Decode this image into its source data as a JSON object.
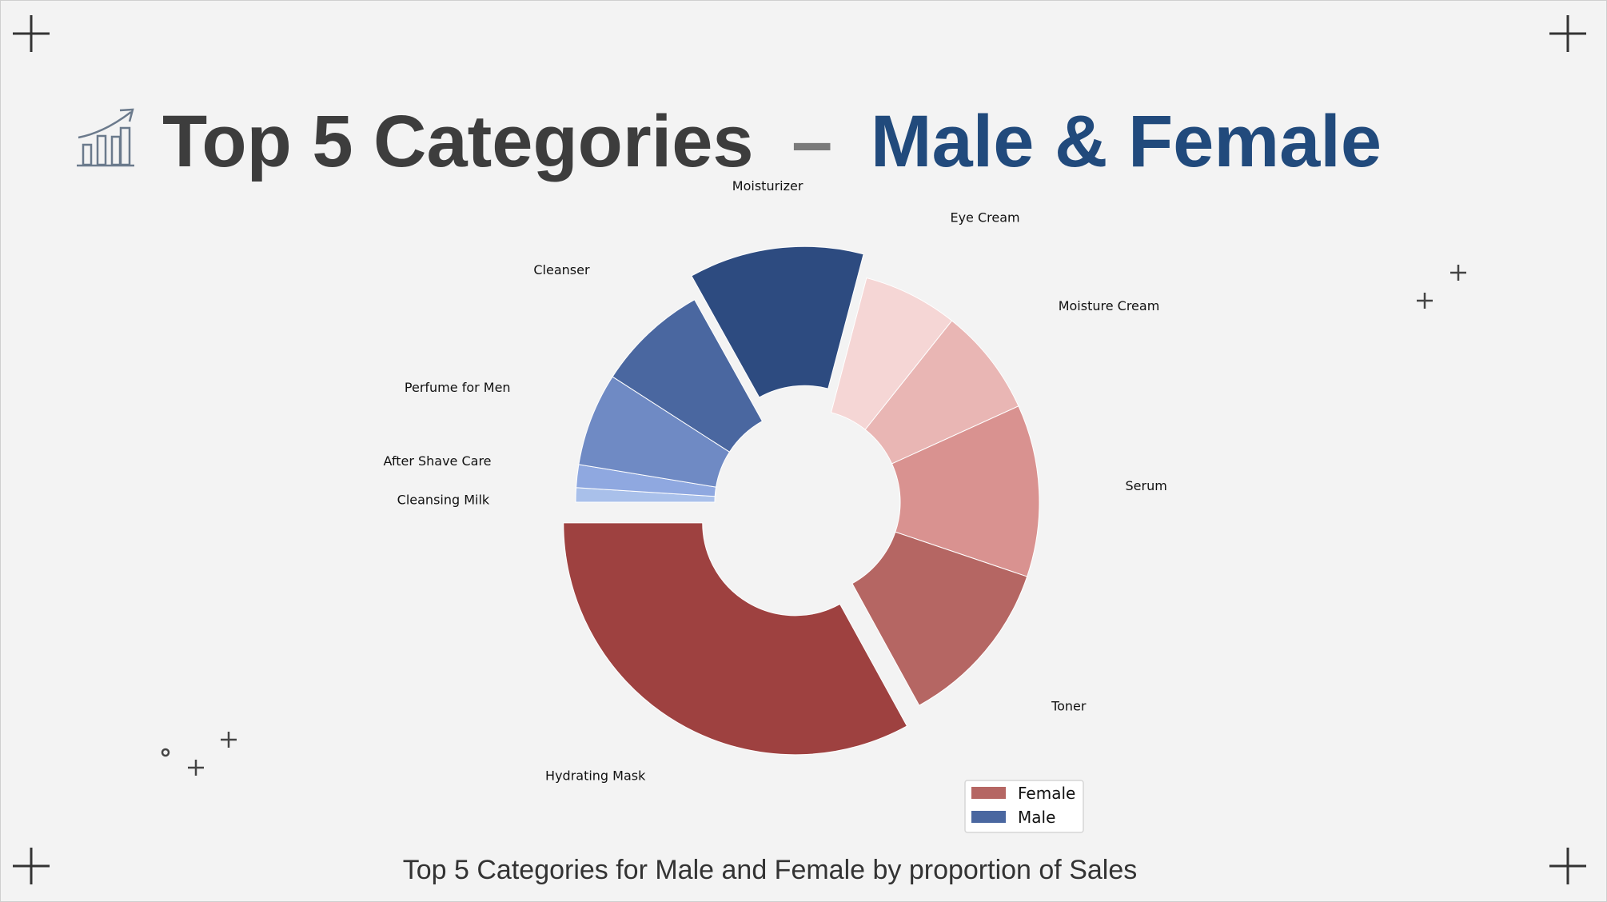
{
  "title": {
    "part1": "Top 5 Categories",
    "dash": "–",
    "part2": "Male & Female"
  },
  "caption": "Top 5 Categories for Male and Female by proportion of Sales",
  "icons": [
    "growth-chart-icon",
    "crosshair-mark-icon",
    "plus-sparkle-icon",
    "circle-dot-icon"
  ],
  "colors": {
    "title_dark": "#3d3d3d",
    "title_accent": "#214a7c",
    "dash": "#7a7a7a",
    "background": "#f3f3f3"
  },
  "legend": {
    "placement": "lower-right",
    "items": [
      {
        "label": "Female",
        "color": "#b56663"
      },
      {
        "label": "Male",
        "color": "#4a67a0"
      }
    ]
  },
  "chart_data": {
    "type": "pie",
    "donut": true,
    "start_angle_deg": 180,
    "direction": "clockwise",
    "slices": [
      {
        "label": "Cleansing Milk",
        "value": 1.0,
        "group": "Male",
        "color": "#a9c0ea",
        "explode": false
      },
      {
        "label": "After Shave Care",
        "value": 1.6,
        "group": "Male",
        "color": "#8fa8e0",
        "explode": false
      },
      {
        "label": "Perfume for Men",
        "value": 6.5,
        "group": "Male",
        "color": "#6f8ac4",
        "explode": false
      },
      {
        "label": "Cleanser",
        "value": 7.8,
        "group": "Male",
        "color": "#4a67a0",
        "explode": false
      },
      {
        "label": "Moisturizer",
        "value": 12.2,
        "group": "Male",
        "color": "#2d4b80",
        "explode": true
      },
      {
        "label": "Eye Cream",
        "value": 6.6,
        "group": "Female",
        "color": "#f5d6d5",
        "explode": false
      },
      {
        "label": "Moisture Cream",
        "value": 7.5,
        "group": "Female",
        "color": "#e9b6b4",
        "explode": false
      },
      {
        "label": "Serum",
        "value": 12.0,
        "group": "Female",
        "color": "#d99290",
        "explode": false
      },
      {
        "label": "Toner",
        "value": 11.8,
        "group": "Female",
        "color": "#b56663",
        "explode": false
      },
      {
        "label": "Hydrating Mask",
        "value": 33.0,
        "group": "Female",
        "color": "#9e4140",
        "explode": true
      }
    ]
  }
}
